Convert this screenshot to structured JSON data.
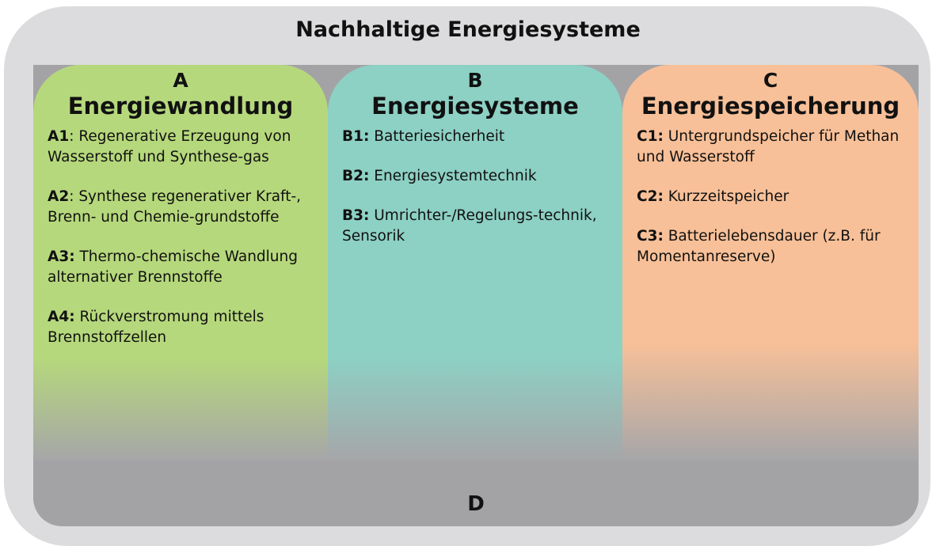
{
  "title": "Nachhaltige Energiesysteme",
  "columns": [
    {
      "letter": "A",
      "name": "Energiewandlung",
      "items": [
        {
          "code": "A1",
          "text": ": Regenerative Erzeugung von Wasserstoff und Synthese-gas"
        },
        {
          "code": "A2",
          "text": ": Synthese regenerativer Kraft-, Brenn- und Chemie-grundstoffe"
        },
        {
          "code": "A3:",
          "text": " Thermo-chemische Wandlung alternativer Brennstoffe"
        },
        {
          "code": "A4:",
          "text": " Rückverstromung mittels Brennstoffzellen"
        }
      ]
    },
    {
      "letter": "B",
      "name": "Energiesysteme",
      "items": [
        {
          "code": "B1:",
          "text": " Batteriesicherheit"
        },
        {
          "code": "B2:",
          "text": " Energiesystemtechnik"
        },
        {
          "code": "B3:",
          "text": " Umrichter-/Regelungs-technik, Sensorik"
        }
      ]
    },
    {
      "letter": "C",
      "name": "Energiespeicherung",
      "items": [
        {
          "code": "C1:",
          "text": " Untergrundspeicher für Methan und Wasserstoff"
        },
        {
          "code": "C2:",
          "text": " Kurzzeitspeicher"
        },
        {
          "code": "C3:",
          "text": " Batterielebensdauer (z.B. für Momentanreserve)"
        }
      ]
    }
  ],
  "footer": "D"
}
